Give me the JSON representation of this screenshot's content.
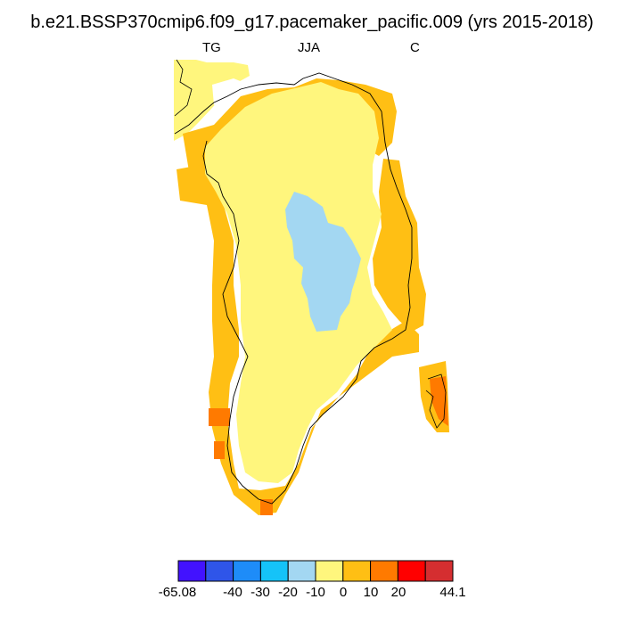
{
  "title": "b.e21.BSSP370cmip6.f09_g17.pacemaker_pacific.009 (yrs 2015-2018)",
  "labels": {
    "left": "TG",
    "center": "JJA",
    "right": "C"
  },
  "colors": {
    "c1": "#4212ff",
    "c2": "#2f55e9",
    "c3": "#1e8cf8",
    "c4": "#15c3f8",
    "c5": "#a3d7f2",
    "c6": "#fff67d",
    "c7": "#ffbf14",
    "c8": "#ff7a00",
    "c9": "#ff0000",
    "c10": "#d52e30"
  },
  "colorbar": {
    "labels": [
      "-65.08",
      "-40",
      "-30",
      "-20",
      "-10",
      "0",
      "10",
      "20",
      "44.1"
    ]
  }
}
